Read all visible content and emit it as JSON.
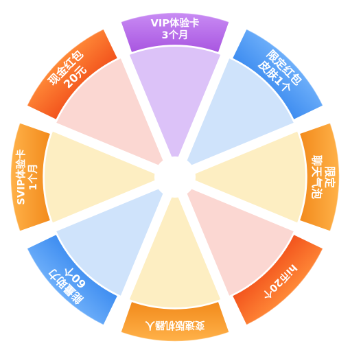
{
  "prize_wheel": {
    "segments": [
      {
        "lines": [
          "VIP体验卡",
          "3个月"
        ],
        "tab_color": "#a855e0",
        "tab_color_light": "#c98cf4",
        "pie_color": "#dcc2f8"
      },
      {
        "lines": [
          "限定红包",
          "皮肤1个"
        ],
        "tab_color": "#3d8cf0",
        "tab_color_light": "#6fb0fa",
        "pie_color": "#cfe3fb"
      },
      {
        "lines": [
          "限定",
          "聊天气泡"
        ],
        "tab_color": "#f28a1b",
        "tab_color_light": "#ffb24a",
        "pie_color": "#fdeec2"
      },
      {
        "lines": [
          "hi币20个"
        ],
        "tab_color": "#f2521c",
        "tab_color_light": "#ff8a38",
        "pie_color": "#fbd7d2"
      },
      {
        "lines": [
          "变速版机器人"
        ],
        "tab_color": "#f28a1b",
        "tab_color_light": "#ffb24a",
        "pie_color": "#fdeec2"
      },
      {
        "lines": [
          "能量助力",
          "60个"
        ],
        "tab_color": "#3d8cf0",
        "tab_color_light": "#6fb0fa",
        "pie_color": "#cfe3fb"
      },
      {
        "lines": [
          "SVIP体验卡",
          "1个月"
        ],
        "tab_color": "#f28a1b",
        "tab_color_light": "#ffb24a",
        "pie_color": "#fdeec2"
      },
      {
        "lines": [
          "现金红包",
          "20元"
        ],
        "tab_color": "#f2521c",
        "tab_color_light": "#ff8a38",
        "pie_color": "#fbd7d2"
      }
    ]
  }
}
